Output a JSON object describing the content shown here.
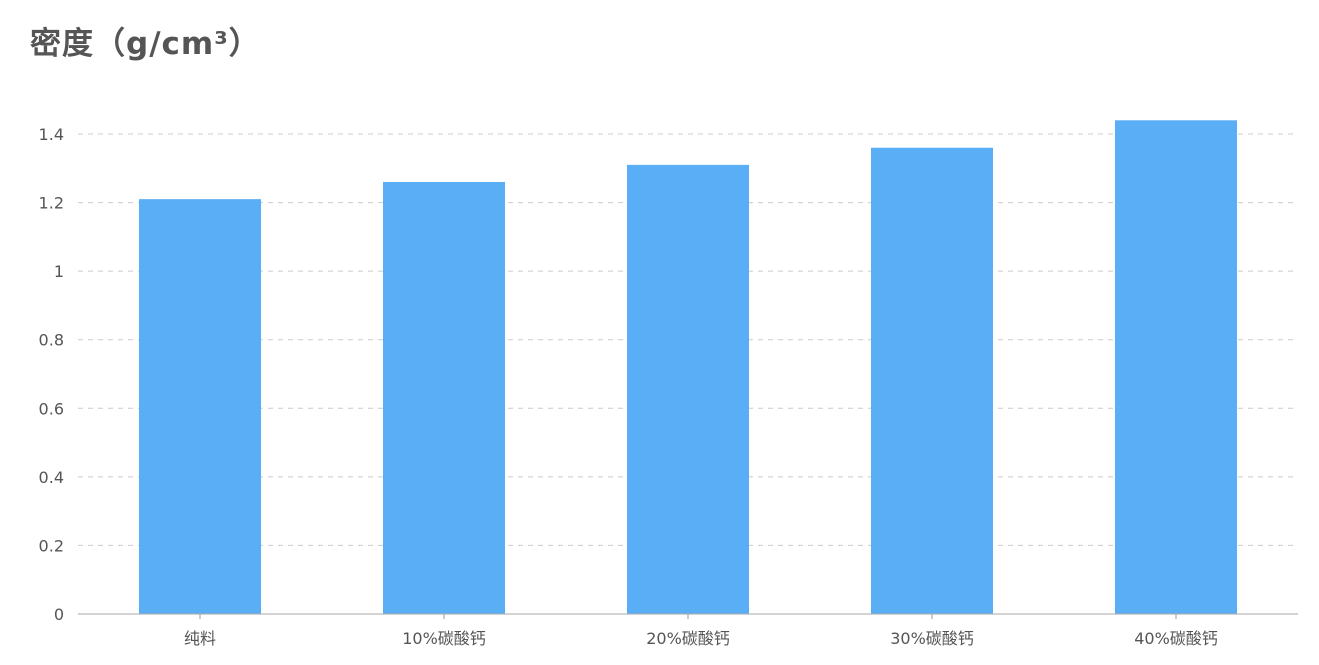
{
  "chart_data": {
    "type": "bar",
    "title": "密度（g/cm³）",
    "xlabel": "",
    "ylabel": "",
    "categories": [
      "纯料",
      "10%碳酸钙",
      "20%碳酸钙",
      "30%碳酸钙",
      "40%碳酸钙"
    ],
    "values": [
      1.21,
      1.26,
      1.31,
      1.36,
      1.44
    ],
    "ylim": [
      0,
      1.4
    ],
    "yticks": [
      "0",
      "0.2",
      "0.4",
      "0.6",
      "0.8",
      "1",
      "1.2",
      "1.4"
    ],
    "grid": true,
    "legend": "none",
    "bar_color": "#5aaef5"
  }
}
